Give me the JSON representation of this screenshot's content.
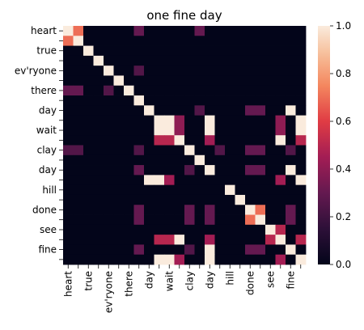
{
  "chart_data": {
    "type": "heatmap",
    "title": "one fine day",
    "xlabel": "",
    "ylabel": "",
    "labels": [
      "heart",
      "",
      "true",
      "",
      "ev'ryone",
      "",
      "there",
      "",
      "day",
      "",
      "wait",
      "",
      "clay",
      "",
      "day",
      "",
      "hill",
      "",
      "done",
      "",
      "see",
      "",
      "fine",
      ""
    ],
    "values": [
      [
        1.0,
        0.7,
        0,
        0,
        0,
        0,
        0,
        0.3,
        0,
        0,
        0,
        0,
        0,
        0.3,
        0,
        0,
        0,
        0,
        0,
        0,
        0,
        0,
        0,
        0
      ],
      [
        0.7,
        1.0,
        0,
        0,
        0,
        0,
        0,
        0,
        0,
        0,
        0,
        0,
        0,
        0,
        0,
        0,
        0,
        0,
        0,
        0,
        0,
        0,
        0,
        0
      ],
      [
        0,
        0,
        1.0,
        0,
        0,
        0,
        0,
        0,
        0,
        0,
        0,
        0,
        0,
        0,
        0,
        0,
        0,
        0,
        0,
        0,
        0,
        0,
        0,
        0
      ],
      [
        0,
        0,
        0,
        1.0,
        0,
        0,
        0,
        0,
        0,
        0,
        0,
        0,
        0,
        0,
        0,
        0,
        0,
        0,
        0,
        0,
        0,
        0,
        0,
        0
      ],
      [
        0,
        0,
        0,
        0,
        1.0,
        0,
        0,
        0.25,
        0,
        0,
        0,
        0,
        0,
        0,
        0,
        0,
        0,
        0,
        0,
        0,
        0,
        0,
        0,
        0
      ],
      [
        0,
        0,
        0,
        0,
        0,
        1.0,
        0,
        0,
        0,
        0,
        0,
        0,
        0,
        0,
        0,
        0,
        0,
        0,
        0,
        0,
        0,
        0,
        0,
        0
      ],
      [
        0.3,
        0.3,
        0,
        0,
        0.25,
        0,
        1.0,
        0,
        0,
        0,
        0,
        0,
        0,
        0,
        0,
        0,
        0,
        0,
        0,
        0,
        0,
        0,
        0,
        0
      ],
      [
        0,
        0,
        0,
        0,
        0,
        0,
        0,
        1.0,
        0,
        0,
        0,
        0,
        0,
        0,
        0,
        0,
        0,
        0,
        0,
        0,
        0,
        0,
        0,
        0
      ],
      [
        0,
        0,
        0,
        0,
        0,
        0,
        0,
        0,
        1.0,
        0,
        0,
        0,
        0,
        0.25,
        0,
        0,
        0,
        0,
        0.3,
        0.3,
        0,
        0,
        1.0,
        0
      ],
      [
        0,
        0,
        0,
        0,
        0,
        0,
        0,
        0,
        0,
        1.0,
        1.0,
        0.4,
        0,
        0,
        1.0,
        0,
        0,
        0,
        0,
        0,
        0,
        0.4,
        0,
        1.0
      ],
      [
        0,
        0,
        0,
        0,
        0,
        0,
        0,
        0,
        0,
        1.0,
        1.0,
        0.4,
        0,
        0,
        1.0,
        0,
        0,
        0,
        0,
        0,
        0,
        0.4,
        0,
        1.0
      ],
      [
        0,
        0,
        0,
        0,
        0,
        0,
        0,
        0,
        0,
        0.5,
        0.5,
        1.0,
        0,
        0,
        0.45,
        0,
        0,
        0,
        0,
        0,
        0,
        1.0,
        0,
        0.5
      ],
      [
        0.25,
        0.25,
        0,
        0,
        0,
        0,
        0,
        0.25,
        0,
        0,
        0,
        0,
        1.0,
        0,
        0,
        0.25,
        0,
        0,
        0.3,
        0.3,
        0,
        0,
        0.25,
        0
      ],
      [
        0,
        0,
        0,
        0,
        0,
        0,
        0,
        0,
        0,
        0,
        0,
        0,
        0,
        1.0,
        0,
        0,
        0,
        0,
        0,
        0,
        0,
        0,
        0,
        0
      ],
      [
        0,
        0,
        0,
        0,
        0,
        0,
        0,
        0.3,
        0,
        0,
        0,
        0,
        0.25,
        0,
        1.0,
        0,
        0,
        0,
        0.3,
        0.3,
        0,
        0,
        1.0,
        0
      ],
      [
        0,
        0,
        0,
        0,
        0,
        0,
        0,
        0,
        1.0,
        1.0,
        0.45,
        0,
        0,
        0,
        0,
        0,
        0,
        0,
        0,
        0,
        0,
        0.45,
        0,
        1.0
      ],
      [
        0,
        0,
        0,
        0,
        0,
        0,
        0,
        0,
        0,
        0,
        0,
        0,
        0,
        0,
        0,
        0,
        1.0,
        0,
        0,
        0,
        0,
        0,
        0,
        0
      ],
      [
        0,
        0,
        0,
        0,
        0,
        0,
        0,
        0,
        0,
        0,
        0,
        0,
        0,
        0,
        0,
        0,
        0,
        1.0,
        0,
        0,
        0,
        0,
        0,
        0
      ],
      [
        0,
        0,
        0,
        0,
        0,
        0,
        0,
        0.3,
        0,
        0,
        0,
        0,
        0.3,
        0,
        0.3,
        0,
        0,
        0,
        1.0,
        0.7,
        0,
        0,
        0.3,
        0
      ],
      [
        0,
        0,
        0,
        0,
        0,
        0,
        0,
        0.3,
        0,
        0,
        0,
        0,
        0.3,
        0,
        0.3,
        0,
        0,
        0,
        0.7,
        1.0,
        0,
        0,
        0.3,
        0
      ],
      [
        0,
        0,
        0,
        0,
        0,
        0,
        0,
        0,
        0,
        0,
        0,
        0,
        0,
        0,
        0,
        0,
        0,
        0,
        0,
        0,
        1.0,
        0.5,
        0,
        0
      ],
      [
        0,
        0,
        0,
        0,
        0,
        0,
        0,
        0,
        0,
        0.5,
        0.5,
        1.0,
        0,
        0,
        0.45,
        0,
        0,
        0,
        0,
        0,
        0.5,
        1.0,
        0,
        0.5
      ],
      [
        0,
        0,
        0,
        0,
        0,
        0,
        0,
        0.3,
        0,
        0,
        0,
        0,
        0.25,
        0,
        1.0,
        0,
        0,
        0,
        0.3,
        0.3,
        0,
        0,
        1.0,
        0
      ],
      [
        0,
        0,
        0,
        0,
        0,
        0,
        0,
        0,
        0,
        1.0,
        1.0,
        0.45,
        0,
        0,
        1.0,
        0,
        0,
        0,
        0,
        0,
        0,
        0.45,
        0,
        1.0
      ]
    ],
    "colorbar": {
      "min": 0.0,
      "max": 1.0,
      "ticks": [
        "0.0",
        "0.2",
        "0.4",
        "0.6",
        "0.8",
        "1.0"
      ]
    },
    "colormap": "rocket",
    "grid": false,
    "legend": "colorbar-right"
  }
}
